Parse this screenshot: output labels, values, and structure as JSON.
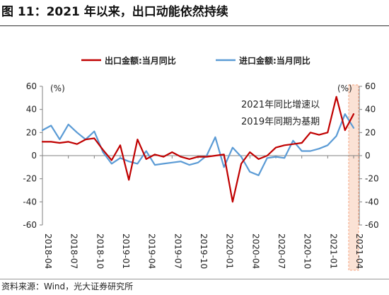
{
  "figure": {
    "title": "图 11：2021 年以来，出口动能依然持续",
    "source": "资料来源：Wind，光大证券研究所"
  },
  "chart_data": {
    "type": "line",
    "ylabel_left": "(%)",
    "ylabel_right": "(%)",
    "ylim": [
      -60,
      60
    ],
    "yticks": [
      -60,
      -40,
      -20,
      0,
      20,
      40,
      60
    ],
    "ytick_labels": [
      "-60",
      "-40",
      "-20",
      "0",
      "20",
      "40",
      "60"
    ],
    "x_tick_labels": [
      "2018-04",
      "2018-07",
      "2018-10",
      "2019-01",
      "2019-04",
      "2019-07",
      "2019-10",
      "2020-01",
      "2020-04",
      "2020-07",
      "2020-10",
      "2021-01",
      "2021-04"
    ],
    "x": [
      "2018-04",
      "2018-05",
      "2018-06",
      "2018-07",
      "2018-08",
      "2018-09",
      "2018-10",
      "2018-11",
      "2018-12",
      "2019-01",
      "2019-02",
      "2019-03",
      "2019-04",
      "2019-05",
      "2019-06",
      "2019-07",
      "2019-08",
      "2019-09",
      "2019-10",
      "2019-11",
      "2019-12",
      "2020-01",
      "2020-02",
      "2020-03",
      "2020-04",
      "2020-05",
      "2020-06",
      "2020-07",
      "2020-08",
      "2020-09",
      "2020-10",
      "2020-11",
      "2020-12",
      "2021-01",
      "2021-02",
      "2021-03",
      "2021-04"
    ],
    "grid": false,
    "legend_position": "top",
    "annotation": [
      "2021年同比增速以",
      "2019年同期为基期"
    ],
    "highlight_period": "2021-04",
    "series": [
      {
        "name": "出口金额:当月同比",
        "color": "#c00000",
        "values": [
          12,
          12,
          11,
          12,
          10,
          14,
          15,
          5,
          -4,
          9,
          -21,
          14,
          -3,
          1,
          -1,
          3,
          -1,
          -3,
          -1,
          -1,
          0,
          1,
          -40,
          -7,
          3,
          -3,
          0,
          7,
          9,
          10,
          11,
          20,
          18,
          20,
          51,
          22,
          36
        ]
      },
      {
        "name": "进口金额:当月同比",
        "color": "#5b9bd5",
        "values": [
          22,
          26,
          14,
          27,
          20,
          14,
          21,
          3,
          -7,
          -2,
          -5,
          -7,
          4,
          -8,
          -7,
          -6,
          -5,
          -8,
          -6,
          0,
          16,
          -10,
          7,
          -1,
          -14,
          -17,
          -2,
          -1,
          -2,
          13,
          4,
          4,
          6,
          9,
          17,
          36,
          24
        ]
      }
    ]
  },
  "colors": {
    "export": "#c00000",
    "import": "#5b9bd5",
    "highlight_fill": "#fbe2d5",
    "highlight_border": "#f4a582"
  }
}
